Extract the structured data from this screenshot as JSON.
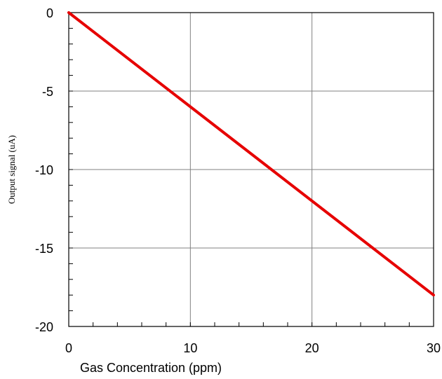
{
  "chart_data": {
    "type": "line",
    "title": "",
    "xlabel": "Gas Concentration (ppm)",
    "ylabel": "Output signal (uA)",
    "xlim": [
      0,
      30
    ],
    "ylim": [
      -20,
      0
    ],
    "x_ticks": [
      0,
      10,
      20,
      30
    ],
    "y_ticks": [
      0,
      -5,
      -10,
      -15,
      -20
    ],
    "x_minor_step": 2,
    "y_minor_step": 1,
    "grid": true,
    "series": [
      {
        "name": "",
        "color": "#e60000",
        "x": [
          0,
          30
        ],
        "y": [
          0,
          -18
        ]
      }
    ]
  }
}
